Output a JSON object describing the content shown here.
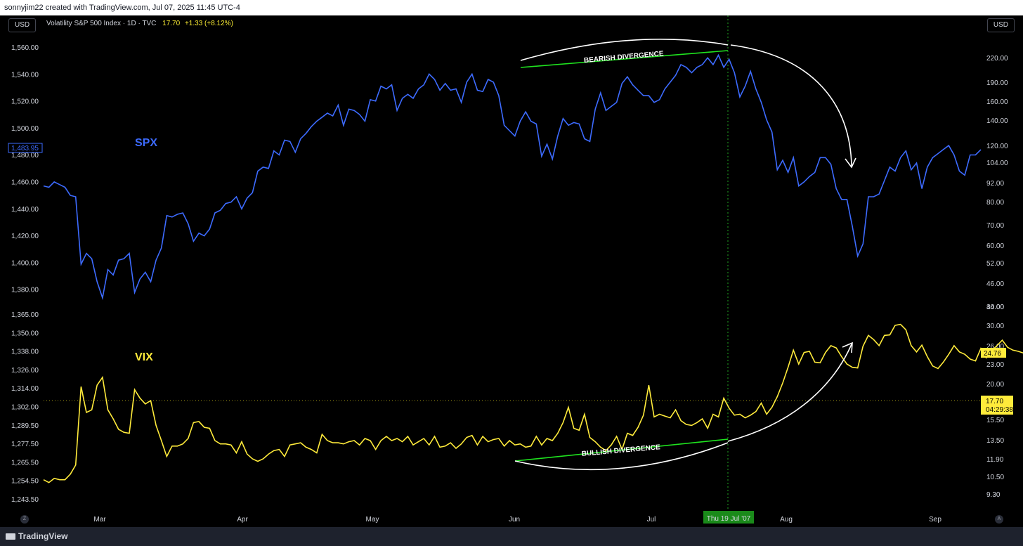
{
  "header": {
    "attribution": "sonnyjim22 created with TradingView.com, Jul 07, 2025 11:45 UTC-4",
    "currency_left": "USD",
    "currency_right": "USD",
    "legend_name": "Volatility S&P 500 Index · 1D · TVC",
    "legend_last": "17.70",
    "legend_change": "+1.33 (+8.12%)"
  },
  "footer": {
    "brand": "TradingView",
    "btn_left": "Z",
    "btn_right": "A"
  },
  "colors": {
    "spx": "#3d6bff",
    "vix": "#ffeb3b",
    "divergence_line": "#1fe31f",
    "crosshair": "#22a322",
    "date_tag_bg": "#1a8a1a",
    "arrow": "#ffffff"
  },
  "chart_data": {
    "type": "line",
    "x_tick_labels": [
      "Mar",
      "Apr",
      "May",
      "Jun",
      "Jul",
      "Aug",
      "Sep"
    ],
    "crosshair_date_label": "Thu 19 Jul '07",
    "left_axis_labels_upper": [
      "1,560.00",
      "1,540.00",
      "1,520.00",
      "1,500.00",
      "1,480.00",
      "1,460.00",
      "1,440.00",
      "1,420.00",
      "1,400.00",
      "1,380.00"
    ],
    "left_axis_labels_lower": [
      "1,365.00",
      "1,350.00",
      "1,338.00",
      "1,326.00",
      "1,314.00",
      "1,302.00",
      "1,289.50",
      "1,277.50",
      "1,265.50",
      "1,254.50",
      "1,243.50"
    ],
    "right_axis_labels_upper": [
      "220.00",
      "190.00",
      "160.00",
      "140.00",
      "120.00",
      "104.00",
      "92.00",
      "80.00",
      "70.00",
      "60.00",
      "52.00",
      "46.00",
      "40.00"
    ],
    "right_axis_labels_lower": [
      "34.00",
      "30.00",
      "26.00",
      "23.00",
      "20.00",
      "15.50",
      "13.50",
      "11.90",
      "10.50",
      "9.30"
    ],
    "spx_price_tag": "1,483.95",
    "vix_price_tag": "24.76",
    "vix_last_tag": "17.70",
    "vix_countdown": "04:29:38",
    "spx_ylim": [
      1370,
      1565
    ],
    "vix_ylim": [
      9.0,
      34.0
    ],
    "series": [
      {
        "name": "SPX",
        "values": [
          1457,
          1456,
          1460,
          1458,
          1456,
          1450,
          1449,
          1399,
          1407,
          1403,
          1386,
          1374,
          1395,
          1391,
          1402,
          1403,
          1407,
          1378,
          1388,
          1393,
          1386,
          1402,
          1411,
          1435,
          1434,
          1436,
          1437,
          1429,
          1416,
          1422,
          1420,
          1425,
          1437,
          1439,
          1444,
          1445,
          1449,
          1440,
          1448,
          1452,
          1468,
          1471,
          1470,
          1483,
          1480,
          1491,
          1490,
          1482,
          1492,
          1496,
          1501,
          1505,
          1508,
          1511,
          1509,
          1517,
          1502,
          1514,
          1513,
          1510,
          1505,
          1521,
          1520,
          1531,
          1529,
          1532,
          1513,
          1522,
          1525,
          1522,
          1529,
          1532,
          1540,
          1536,
          1528,
          1533,
          1528,
          1529,
          1519,
          1534,
          1540,
          1528,
          1527,
          1536,
          1534,
          1524,
          1502,
          1498,
          1494,
          1505,
          1512,
          1505,
          1503,
          1479,
          1488,
          1477,
          1494,
          1507,
          1502,
          1504,
          1503,
          1492,
          1490,
          1514,
          1526,
          1513,
          1516,
          1519,
          1533,
          1538,
          1532,
          1528,
          1524,
          1524,
          1519,
          1521,
          1529,
          1534,
          1539,
          1547,
          1545,
          1541,
          1545,
          1547,
          1552,
          1547,
          1554,
          1545,
          1551,
          1541,
          1523,
          1531,
          1542,
          1529,
          1519,
          1506,
          1497,
          1469,
          1476,
          1467,
          1478,
          1457,
          1460,
          1464,
          1467,
          1478,
          1478,
          1473,
          1455,
          1447,
          1447,
          1427,
          1405,
          1414,
          1449,
          1449,
          1451,
          1461,
          1471,
          1468,
          1478,
          1483,
          1469,
          1474,
          1455,
          1471,
          1478,
          1481,
          1484,
          1487,
          1480,
          1468,
          1465,
          1480,
          1480,
          1483.95
        ],
        "display_values": [
          1457,
          1456,
          1460,
          1458,
          1456,
          1450,
          1449,
          1399,
          1407,
          1403,
          1386,
          1374,
          1395,
          1391,
          1402,
          1403,
          1407,
          1378,
          1388,
          1393,
          1386,
          1402,
          1411,
          1435,
          1434,
          1436,
          1437,
          1429,
          1416,
          1422,
          1420,
          1425,
          1437,
          1439,
          1444,
          1445,
          1449,
          1440,
          1448,
          1452,
          1468,
          1471,
          1470,
          1483,
          1480,
          1491,
          1490,
          1482,
          1492,
          1496,
          1501,
          1505,
          1508,
          1511,
          1509,
          1517,
          1502,
          1514,
          1513,
          1510,
          1505,
          1521,
          1520,
          1531,
          1529,
          1532,
          1513,
          1522,
          1525,
          1522,
          1529,
          1532,
          1540,
          1536,
          1528,
          1533,
          1528,
          1529,
          1519,
          1534,
          1540,
          1528,
          1527,
          1536,
          1534,
          1524,
          1502,
          1498,
          1494,
          1505,
          1512,
          1505,
          1503,
          1479,
          1488,
          1477,
          1494,
          1507,
          1502,
          1504,
          1503,
          1492,
          1490,
          1514,
          1526,
          1513,
          1516,
          1519,
          1533,
          1538,
          1532,
          1528,
          1524,
          1524,
          1519,
          1521,
          1529,
          1534,
          1539,
          1547,
          1545,
          1541,
          1545,
          1547,
          1552,
          1547,
          1554,
          1545,
          1551,
          1541,
          1523,
          1531,
          1542,
          1529,
          1519,
          1506,
          1497,
          1469,
          1476,
          1467,
          1478,
          1457,
          1460,
          1464,
          1467,
          1478,
          1478,
          1473,
          1455,
          1447,
          1447,
          1427,
          1405,
          1414,
          1449,
          1449,
          1451,
          1461,
          1471,
          1468,
          1478,
          1483,
          1469,
          1474,
          1455,
          1471,
          1478,
          1481,
          1484,
          1487,
          1480,
          1468,
          1465,
          1480,
          1480,
          1483.95
        ]
      },
      {
        "name": "VIX",
        "values": [
          10.4,
          10.2,
          10.5,
          10.4,
          10.4,
          10.8,
          11.5,
          19.7,
          16.5,
          16.8,
          19.9,
          21.0,
          16.8,
          15.8,
          14.7,
          14.4,
          14.3,
          19.3,
          18.2,
          17.5,
          17.9,
          15.1,
          13.6,
          12.2,
          13.1,
          13.1,
          13.3,
          13.8,
          15.4,
          15.5,
          14.9,
          14.8,
          13.6,
          13.3,
          13.3,
          13.2,
          12.5,
          13.5,
          12.4,
          12.0,
          11.8,
          12.0,
          12.4,
          12.7,
          12.8,
          12.2,
          13.2,
          13.3,
          13.4,
          13.0,
          12.8,
          12.5,
          14.2,
          13.6,
          13.4,
          13.4,
          13.3,
          13.5,
          13.6,
          13.2,
          13.8,
          13.6,
          12.8,
          13.6,
          14.0,
          13.6,
          13.8,
          13.5,
          14.0,
          13.2,
          13.5,
          13.8,
          13.2,
          14.0,
          13.0,
          13.1,
          13.4,
          12.9,
          13.3,
          13.9,
          14.1,
          13.2,
          14.0,
          13.5,
          13.7,
          13.8,
          13.1,
          13.6,
          13.2,
          13.3,
          13.0,
          13.1,
          14.0,
          13.2,
          13.8,
          13.6,
          14.3,
          15.4,
          17.1,
          14.8,
          14.6,
          16.3,
          13.9,
          13.5,
          13.0,
          12.7,
          13.2,
          14.0,
          12.8,
          14.3,
          14.1,
          14.9,
          16.2,
          19.9,
          16.0,
          16.3,
          16.1,
          15.9,
          16.8,
          15.6,
          15.2,
          15.1,
          15.4,
          15.8,
          14.8,
          16.3,
          16.0,
          18.2,
          17.0,
          16.2,
          16.3,
          15.9,
          16.2,
          16.6,
          17.6,
          16.3,
          17.1,
          18.4,
          20.2,
          22.5,
          25.3,
          23.0,
          24.9,
          25.1,
          23.3,
          23.2,
          24.9,
          26.1,
          25.7,
          24.2,
          23.0,
          22.5,
          22.4,
          26.0,
          28.0,
          27.2,
          26.1,
          28.0,
          28.1,
          30.0,
          30.2,
          29.1,
          26.1,
          25.0,
          26.2,
          24.2,
          22.7,
          22.3,
          23.3,
          24.6,
          26.1,
          25.0,
          24.6,
          23.8,
          23.5,
          25.6,
          24.0,
          25.2,
          26.1,
          27.1,
          25.8,
          25.3,
          25.1,
          24.8,
          24.76
        ],
        "display_values": [
          10.4,
          10.2,
          10.5,
          10.4,
          10.4,
          10.8,
          11.5,
          19.7,
          16.5,
          16.8,
          19.9,
          21.0,
          16.8,
          15.8,
          14.7,
          14.4,
          14.3,
          19.3,
          18.2,
          17.5,
          17.9,
          15.1,
          13.6,
          12.2,
          13.1,
          13.1,
          13.3,
          13.8,
          15.4,
          15.5,
          14.9,
          14.8,
          13.6,
          13.3,
          13.3,
          13.2,
          12.5,
          13.5,
          12.4,
          12.0,
          11.8,
          12.0,
          12.4,
          12.7,
          12.8,
          12.2,
          13.2,
          13.3,
          13.4,
          13.0,
          12.8,
          12.5,
          14.2,
          13.6,
          13.4,
          13.4,
          13.3,
          13.5,
          13.6,
          13.2,
          13.8,
          13.6,
          12.8,
          13.6,
          14.0,
          13.6,
          13.8,
          13.5,
          14.0,
          13.2,
          13.5,
          13.8,
          13.2,
          14.0,
          13.0,
          13.1,
          13.4,
          12.9,
          13.3,
          13.9,
          14.1,
          13.2,
          14.0,
          13.5,
          13.7,
          13.8,
          13.1,
          13.6,
          13.2,
          13.3,
          13.0,
          13.1,
          14.0,
          13.2,
          13.8,
          13.6,
          14.3,
          15.4,
          17.1,
          14.8,
          14.6,
          16.3,
          13.9,
          13.5,
          13.0,
          12.7,
          13.2,
          14.0,
          12.8,
          14.3,
          14.1,
          14.9,
          16.2,
          19.9,
          16.0,
          16.3,
          16.1,
          15.9,
          16.8,
          15.6,
          15.2,
          15.1,
          15.4,
          15.8,
          14.8,
          16.3,
          16.0,
          18.2,
          17.0,
          16.2,
          16.3,
          15.9,
          16.2,
          16.6,
          17.6,
          16.3,
          17.1,
          18.4,
          20.2,
          22.5,
          25.3,
          23.0,
          24.9,
          25.1,
          23.3,
          23.2,
          24.9,
          26.1,
          25.7,
          24.2,
          23.0,
          22.5,
          22.4,
          26.0,
          28.0,
          27.2,
          26.1,
          28.0,
          28.1,
          30.0,
          30.2,
          29.1,
          26.1,
          25.0,
          26.2,
          24.2,
          22.7,
          22.3,
          23.3,
          24.6,
          26.1,
          25.0,
          24.6,
          23.8,
          23.5,
          25.6,
          24.0,
          25.2,
          26.1,
          27.1,
          25.8,
          25.3,
          25.1,
          24.8,
          24.76
        ]
      }
    ],
    "annotations": {
      "spx_label": "SPX",
      "vix_label": "VIX",
      "bearish": "BEARISH DIVERGENCE",
      "bullish": "BULLISH DIVERGENCE"
    }
  }
}
